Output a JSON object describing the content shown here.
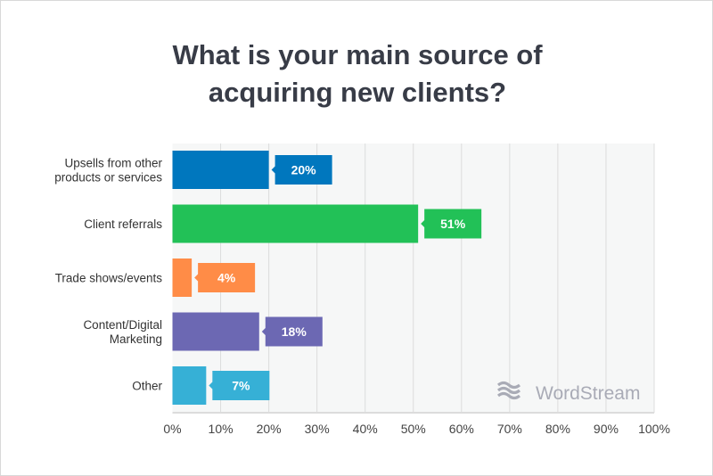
{
  "chart_data": {
    "type": "bar",
    "orientation": "horizontal",
    "title": "What is your main source of acquiring new clients?",
    "title_lines": [
      "What is your main source of",
      "acquiring new clients?"
    ],
    "categories": [
      [
        "Upsells from other",
        "products or services"
      ],
      [
        "Client referrals"
      ],
      [
        "Trade shows/events"
      ],
      [
        "Content/Digital",
        "Marketing"
      ],
      [
        "Other"
      ]
    ],
    "values": [
      20,
      51,
      4,
      18,
      7
    ],
    "data_labels": [
      "20%",
      "51%",
      "4%",
      "18%",
      "7%"
    ],
    "colors": [
      "#0077be",
      "#22c157",
      "#ff8c47",
      "#6c68b3",
      "#36b0d6"
    ],
    "xlim": [
      0,
      100
    ],
    "xticks": [
      "0%",
      "10%",
      "20%",
      "30%",
      "40%",
      "50%",
      "60%",
      "70%",
      "80%",
      "90%",
      "100%"
    ],
    "grid": true,
    "xlabel": "",
    "ylabel": ""
  },
  "watermark": "WordStream"
}
